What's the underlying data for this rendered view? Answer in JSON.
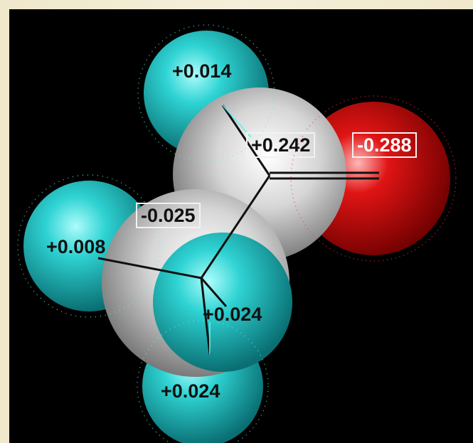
{
  "viewer": {
    "background": "#000000",
    "frame_color": "#f1ebd1"
  },
  "atoms": [
    {
      "element": "H",
      "charge": "+0.014",
      "color": "#1fc8c8"
    },
    {
      "element": "C",
      "charge": "+0.242",
      "color": "#d9d9d9",
      "boxed": true
    },
    {
      "element": "O",
      "charge": "-0.288",
      "color": "#e01010",
      "boxed": true
    },
    {
      "element": "C",
      "charge": "-0.025",
      "color": "#d9d9d9",
      "boxed": true
    },
    {
      "element": "H",
      "charge": "+0.008",
      "color": "#1fc8c8"
    },
    {
      "element": "H",
      "charge": "+0.024",
      "color": "#1fc8c8"
    },
    {
      "element": "H",
      "charge": "+0.024",
      "color": "#1fc8c8"
    }
  ]
}
